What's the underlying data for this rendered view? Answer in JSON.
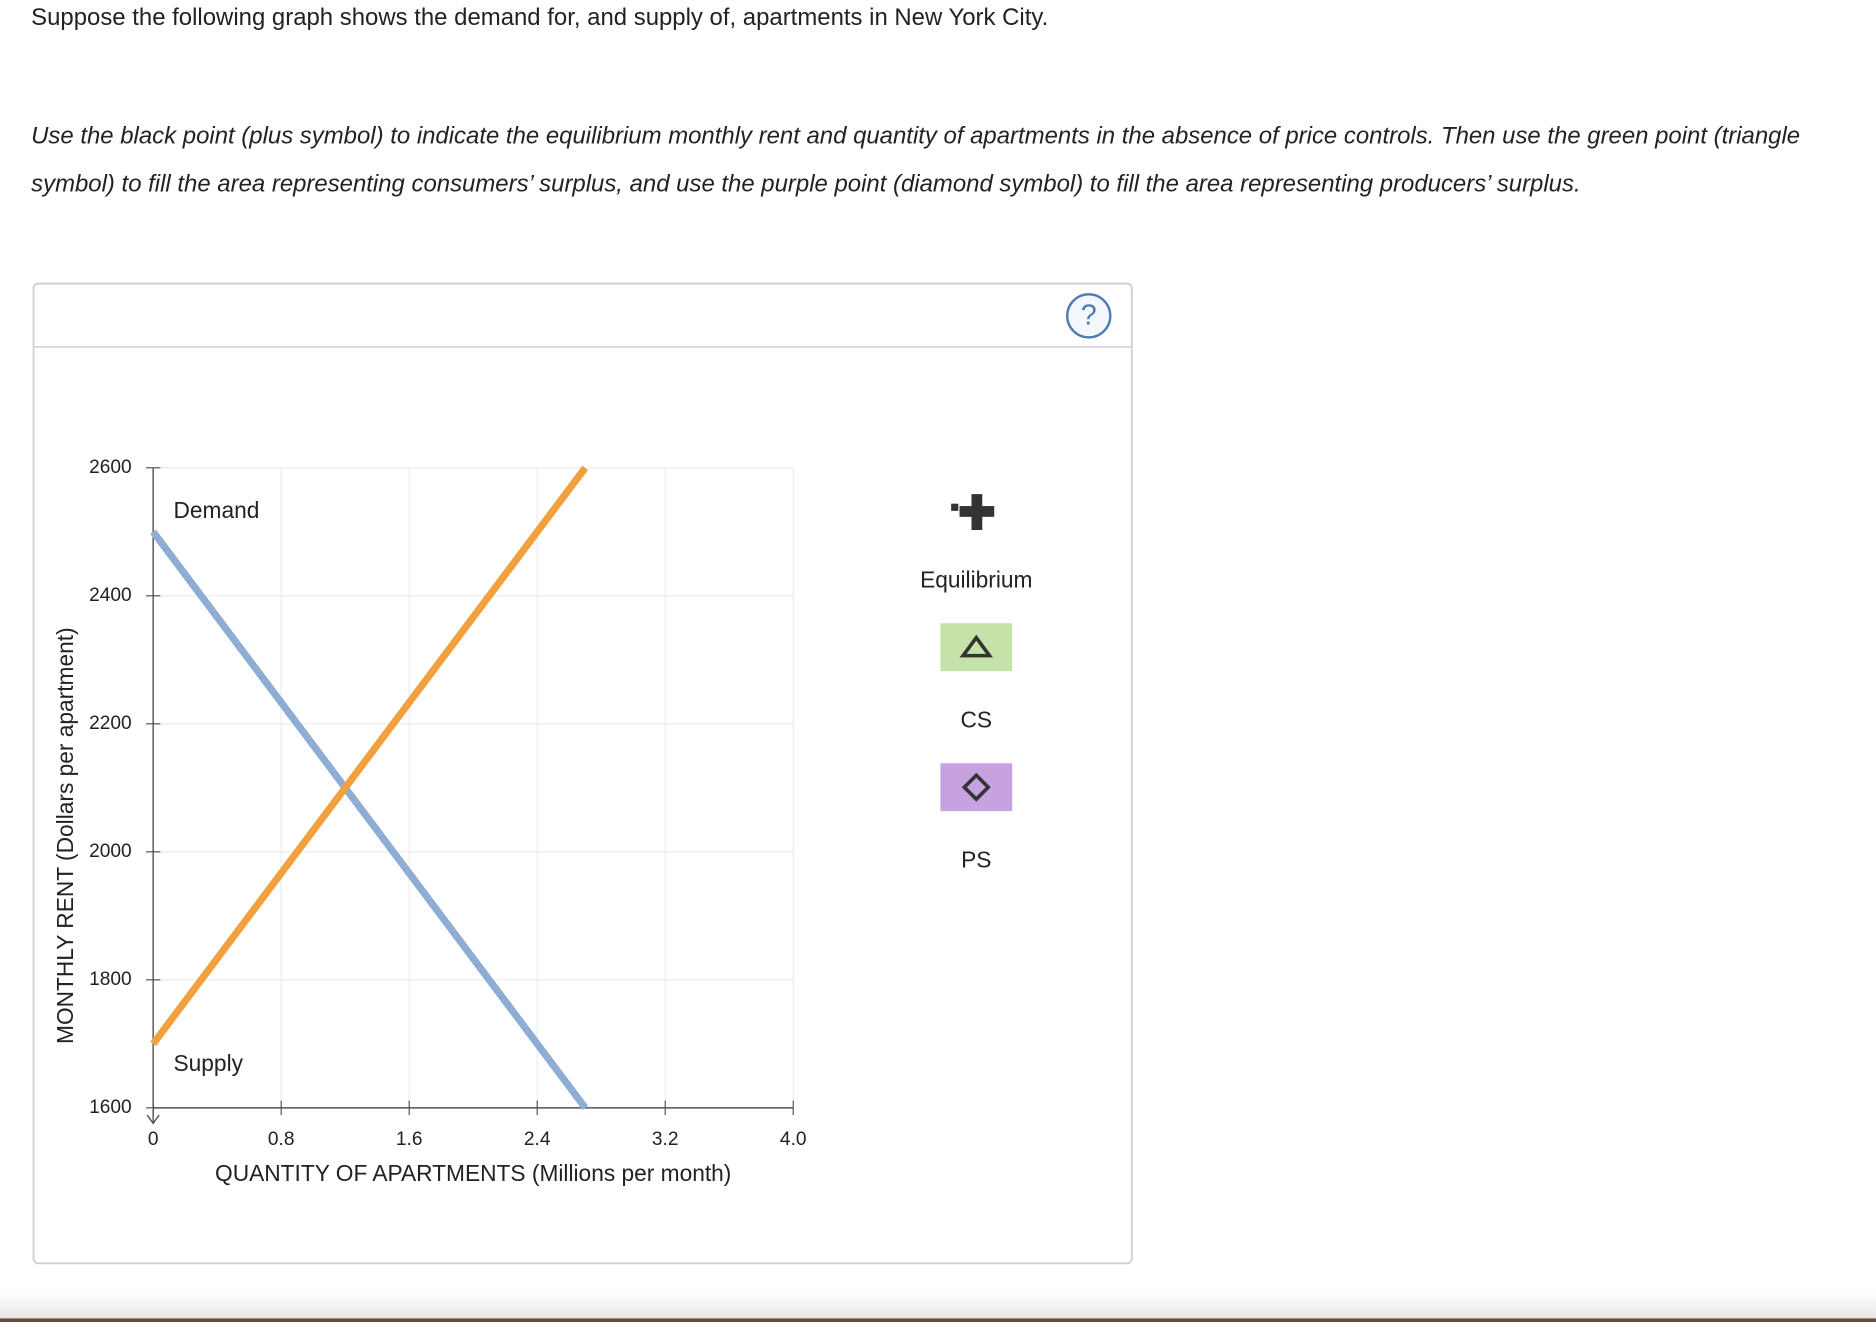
{
  "prompt": "Suppose the following graph shows the demand for, and supply of, apartments in New York City.",
  "instructions": "Use the black point (plus symbol) to indicate the equilibrium monthly rent and quantity of apartments in the absence of price controls. Then use the green point (triangle symbol) to fill the area representing consumers’ surplus, and use the purple point (diamond symbol) to fill the area representing producers’ surplus.",
  "help": "?",
  "tools": [
    "Equilibrium",
    "CS",
    "PS"
  ],
  "chart_data": {
    "type": "line",
    "x_label": "QUANTITY OF APARTMENTS (Millions per month)",
    "y_label": "MONTHLY RENT (Dollars per apartment)",
    "x": [
      0,
      2.7
    ],
    "series": [
      {
        "name": "Demand",
        "color": "#8eadd3",
        "values": [
          2500,
          1600
        ]
      },
      {
        "name": "Supply",
        "color": "#f0a03c",
        "values": [
          1700,
          2600
        ]
      }
    ],
    "xlim": [
      0,
      4
    ],
    "ylim": [
      1600,
      2600
    ],
    "xticks": [
      0,
      0.8,
      1.6,
      2.4,
      3.2,
      {
        "value": 4,
        "label": "4.0"
      }
    ],
    "yticks": [
      1600,
      1800,
      2000,
      2200,
      2400,
      2600
    ],
    "grid": true
  }
}
